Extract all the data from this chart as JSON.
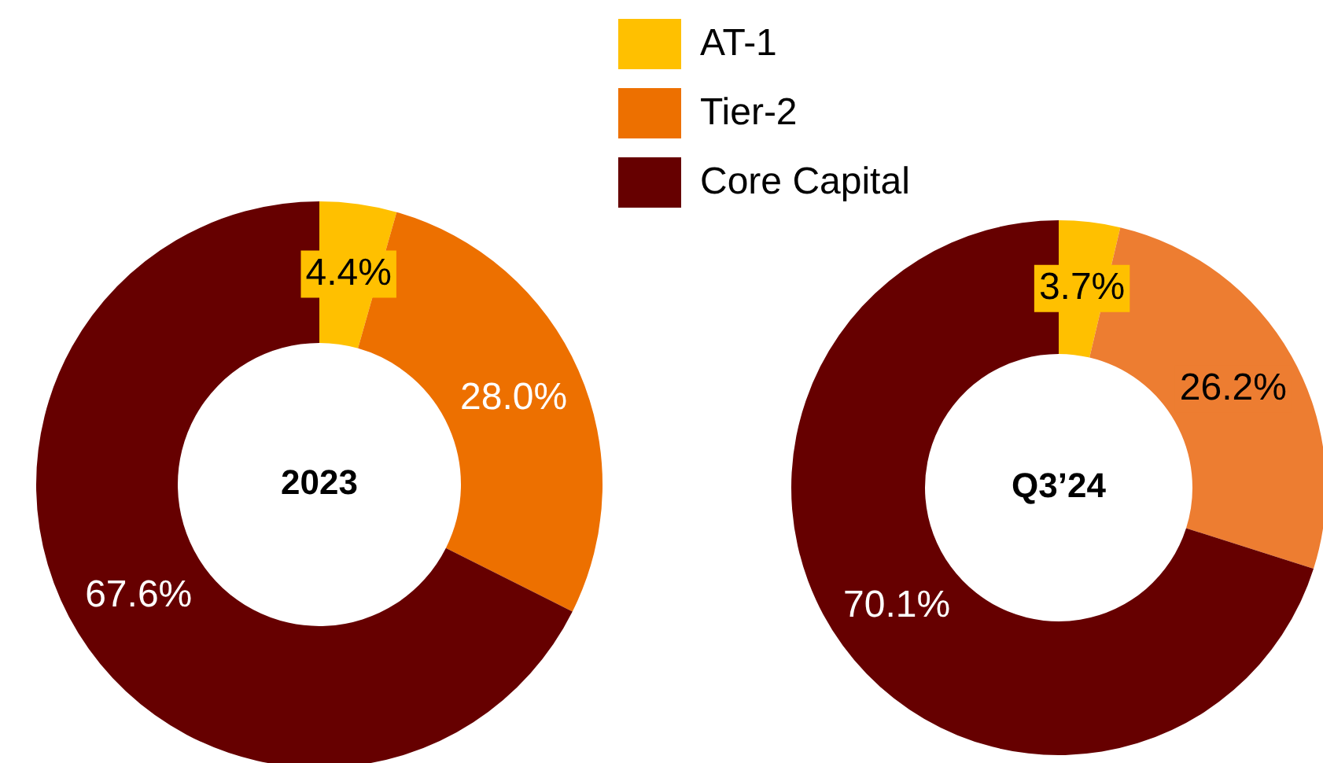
{
  "chart_data": [
    {
      "type": "donut",
      "title": "2023",
      "categories": [
        "AT-1",
        "Tier-2",
        "Core Capital"
      ],
      "values": [
        4.4,
        28.0,
        67.6
      ],
      "colors": [
        "#ffc000",
        "#ed7000",
        "#660000"
      ],
      "value_labels": [
        "4.4%",
        "28.0%",
        "67.6%"
      ],
      "legend": "top right"
    },
    {
      "type": "donut",
      "title": "Q3’24",
      "categories": [
        null,
        null,
        null
      ],
      "values": [
        3.7,
        26.2,
        70.1
      ],
      "colors": [
        "#ffc000",
        "#ed7d31",
        "#660000"
      ],
      "value_labels": [
        "3.7%",
        "26.2%",
        "70.1%"
      ]
    }
  ]
}
